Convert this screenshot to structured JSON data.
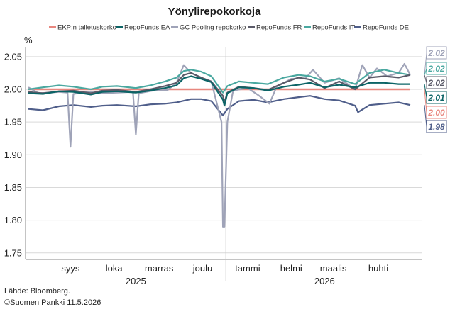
{
  "chart_data": {
    "type": "line",
    "title": "Yönylirepokorkoja",
    "ylabel": "%",
    "ylim": [
      1.74,
      2.065
    ],
    "yticks": [
      "1.75",
      "1.80",
      "1.85",
      "1.90",
      "1.95",
      "2.00",
      "2.05"
    ],
    "x_months": [
      "syys",
      "loka",
      "marras",
      "joulu",
      "tammi",
      "helmi",
      "maalis",
      "huhti"
    ],
    "x_years": [
      "2025",
      "2026"
    ],
    "x_range": [
      "2025-08-18",
      "2026-05-08"
    ],
    "year_break": "2026-01-01",
    "grid": "horizontal",
    "legend_position": "top",
    "series": [
      {
        "name": "EKP:n talletuskorko",
        "color": "#e8877f",
        "end_label": "2.00",
        "points": [
          [
            "2025-08-18",
            2.0
          ],
          [
            "2026-05-08",
            2.0
          ]
        ]
      },
      {
        "name": "RepoFunds EA",
        "color": "#0c6466",
        "end_label": "2.01",
        "points": [
          [
            "2025-08-18",
            1.994
          ],
          [
            "2025-08-28",
            1.993
          ],
          [
            "2025-09-08",
            1.997
          ],
          [
            "2025-09-18",
            1.996
          ],
          [
            "2025-09-30",
            1.992
          ],
          [
            "2025-10-08",
            1.996
          ],
          [
            "2025-10-18",
            1.997
          ],
          [
            "2025-10-31",
            1.995
          ],
          [
            "2025-11-10",
            1.998
          ],
          [
            "2025-11-20",
            2.002
          ],
          [
            "2025-11-28",
            2.006
          ],
          [
            "2025-12-03",
            2.017
          ],
          [
            "2025-12-08",
            2.02
          ],
          [
            "2025-12-15",
            2.016
          ],
          [
            "2025-12-22",
            2.011
          ],
          [
            "2025-12-30",
            1.984
          ],
          [
            "2025-12-31",
            1.975
          ],
          [
            "2026-01-02",
            1.994
          ],
          [
            "2026-01-10",
            2.003
          ],
          [
            "2026-01-20",
            2.002
          ],
          [
            "2026-01-30",
            1.998
          ],
          [
            "2026-02-10",
            2.004
          ],
          [
            "2026-02-20",
            2.007
          ],
          [
            "2026-02-28",
            2.01
          ],
          [
            "2026-03-10",
            2.003
          ],
          [
            "2026-03-20",
            2.007
          ],
          [
            "2026-03-31",
            2.003
          ],
          [
            "2026-04-10",
            2.01
          ],
          [
            "2026-04-20",
            2.01
          ],
          [
            "2026-04-30",
            2.008
          ],
          [
            "2026-05-08",
            2.008
          ]
        ]
      },
      {
        "name": "GC Pooling repokorko",
        "color": "#9fa3b8",
        "end_label": "2.02",
        "points": [
          [
            "2025-08-18",
            2.003
          ],
          [
            "2025-08-25",
            1.994
          ],
          [
            "2025-09-02",
            1.995
          ],
          [
            "2025-09-08",
            1.996
          ],
          [
            "2025-09-14",
            1.995
          ],
          [
            "2025-09-16",
            1.912
          ],
          [
            "2025-09-18",
            1.993
          ],
          [
            "2025-09-28",
            1.996
          ],
          [
            "2025-10-08",
            1.994
          ],
          [
            "2025-10-18",
            1.995
          ],
          [
            "2025-10-29",
            1.996
          ],
          [
            "2025-10-31",
            1.931
          ],
          [
            "2025-11-02",
            1.994
          ],
          [
            "2025-11-12",
            1.998
          ],
          [
            "2025-11-22",
            1.999
          ],
          [
            "2025-11-28",
            2.01
          ],
          [
            "2025-12-03",
            2.037
          ],
          [
            "2025-12-08",
            2.025
          ],
          [
            "2025-12-15",
            2.018
          ],
          [
            "2025-12-22",
            2.012
          ],
          [
            "2025-12-29",
            1.95
          ],
          [
            "2025-12-30",
            1.79
          ],
          [
            "2025-12-31",
            1.79
          ],
          [
            "2026-01-02",
            1.95
          ],
          [
            "2026-01-06",
            1.998
          ],
          [
            "2026-01-16",
            2.002
          ],
          [
            "2026-01-24",
            1.99
          ],
          [
            "2026-01-31",
            1.978
          ],
          [
            "2026-02-05",
            2.004
          ],
          [
            "2026-02-15",
            2.016
          ],
          [
            "2026-02-25",
            2.017
          ],
          [
            "2026-03-02",
            2.03
          ],
          [
            "2026-03-10",
            2.01
          ],
          [
            "2026-03-20",
            2.017
          ],
          [
            "2026-03-31",
            2.0
          ],
          [
            "2026-04-05",
            2.037
          ],
          [
            "2026-04-10",
            2.018
          ],
          [
            "2026-04-15",
            2.032
          ],
          [
            "2026-04-22",
            2.02
          ],
          [
            "2026-04-30",
            2.025
          ],
          [
            "2026-05-04",
            2.039
          ],
          [
            "2026-05-08",
            2.022
          ]
        ]
      },
      {
        "name": "RepoFunds FR",
        "color": "#5a5a68",
        "end_label": "2.02",
        "points": [
          [
            "2025-08-18",
            1.996
          ],
          [
            "2025-08-28",
            1.994
          ],
          [
            "2025-09-08",
            1.997
          ],
          [
            "2025-09-18",
            1.998
          ],
          [
            "2025-09-30",
            1.994
          ],
          [
            "2025-10-08",
            1.998
          ],
          [
            "2025-10-18",
            1.999
          ],
          [
            "2025-10-31",
            1.996
          ],
          [
            "2025-11-10",
            2.0
          ],
          [
            "2025-11-20",
            2.005
          ],
          [
            "2025-11-28",
            2.01
          ],
          [
            "2025-12-03",
            2.022
          ],
          [
            "2025-12-08",
            2.025
          ],
          [
            "2025-12-15",
            2.018
          ],
          [
            "2025-12-22",
            2.012
          ],
          [
            "2025-12-30",
            1.99
          ],
          [
            "2025-12-31",
            1.98
          ],
          [
            "2026-01-02",
            1.995
          ],
          [
            "2026-01-10",
            2.004
          ],
          [
            "2026-01-20",
            2.002
          ],
          [
            "2026-01-30",
            1.999
          ],
          [
            "2026-02-10",
            2.01
          ],
          [
            "2026-02-20",
            2.018
          ],
          [
            "2026-02-28",
            2.015
          ],
          [
            "2026-03-10",
            2.002
          ],
          [
            "2026-03-20",
            2.012
          ],
          [
            "2026-03-31",
            2.0
          ],
          [
            "2026-04-10",
            2.018
          ],
          [
            "2026-04-20",
            2.02
          ],
          [
            "2026-04-30",
            2.018
          ],
          [
            "2026-05-08",
            2.022
          ]
        ]
      },
      {
        "name": "RepoFunds IT",
        "color": "#4aa8a0",
        "end_label": "2.02",
        "points": [
          [
            "2025-08-18",
            2.0
          ],
          [
            "2025-08-28",
            2.003
          ],
          [
            "2025-09-08",
            2.006
          ],
          [
            "2025-09-18",
            2.004
          ],
          [
            "2025-09-30",
            2.0
          ],
          [
            "2025-10-08",
            2.004
          ],
          [
            "2025-10-18",
            2.005
          ],
          [
            "2025-10-31",
            2.002
          ],
          [
            "2025-11-10",
            2.006
          ],
          [
            "2025-11-20",
            2.012
          ],
          [
            "2025-11-28",
            2.018
          ],
          [
            "2025-12-03",
            2.028
          ],
          [
            "2025-12-08",
            2.03
          ],
          [
            "2025-12-15",
            2.027
          ],
          [
            "2025-12-22",
            2.02
          ],
          [
            "2025-12-30",
            1.995
          ],
          [
            "2026-01-02",
            2.005
          ],
          [
            "2026-01-10",
            2.012
          ],
          [
            "2026-01-20",
            2.01
          ],
          [
            "2026-01-30",
            2.008
          ],
          [
            "2026-02-10",
            2.018
          ],
          [
            "2026-02-20",
            2.022
          ],
          [
            "2026-02-28",
            2.02
          ],
          [
            "2026-03-10",
            2.012
          ],
          [
            "2026-03-20",
            2.016
          ],
          [
            "2026-03-31",
            2.008
          ],
          [
            "2026-04-10",
            2.025
          ],
          [
            "2026-04-20",
            2.03
          ],
          [
            "2026-04-30",
            2.025
          ],
          [
            "2026-05-08",
            2.022
          ]
        ]
      },
      {
        "name": "RepoFunds DE",
        "color": "#4f5e8a",
        "end_label": "1.98",
        "points": [
          [
            "2025-08-18",
            1.97
          ],
          [
            "2025-08-28",
            1.968
          ],
          [
            "2025-09-08",
            1.974
          ],
          [
            "2025-09-18",
            1.976
          ],
          [
            "2025-09-30",
            1.973
          ],
          [
            "2025-10-08",
            1.975
          ],
          [
            "2025-10-18",
            1.976
          ],
          [
            "2025-10-31",
            1.974
          ],
          [
            "2025-11-10",
            1.977
          ],
          [
            "2025-11-20",
            1.978
          ],
          [
            "2025-11-28",
            1.98
          ],
          [
            "2025-12-08",
            1.985
          ],
          [
            "2025-12-15",
            1.985
          ],
          [
            "2025-12-22",
            1.982
          ],
          [
            "2025-12-30",
            1.96
          ],
          [
            "2026-01-02",
            1.97
          ],
          [
            "2026-01-10",
            1.982
          ],
          [
            "2026-01-20",
            1.984
          ],
          [
            "2026-01-30",
            1.98
          ],
          [
            "2026-02-10",
            1.985
          ],
          [
            "2026-02-20",
            1.988
          ],
          [
            "2026-02-28",
            1.99
          ],
          [
            "2026-03-10",
            1.985
          ],
          [
            "2026-03-20",
            1.983
          ],
          [
            "2026-03-31",
            1.975
          ],
          [
            "2026-04-02",
            1.965
          ],
          [
            "2026-04-10",
            1.976
          ],
          [
            "2026-04-20",
            1.978
          ],
          [
            "2026-04-30",
            1.98
          ],
          [
            "2026-05-08",
            1.976
          ]
        ]
      }
    ]
  },
  "footer": {
    "source": "Lähde: Bloomberg.",
    "copyright": "©Suomen Pankki 11.5.2026"
  }
}
